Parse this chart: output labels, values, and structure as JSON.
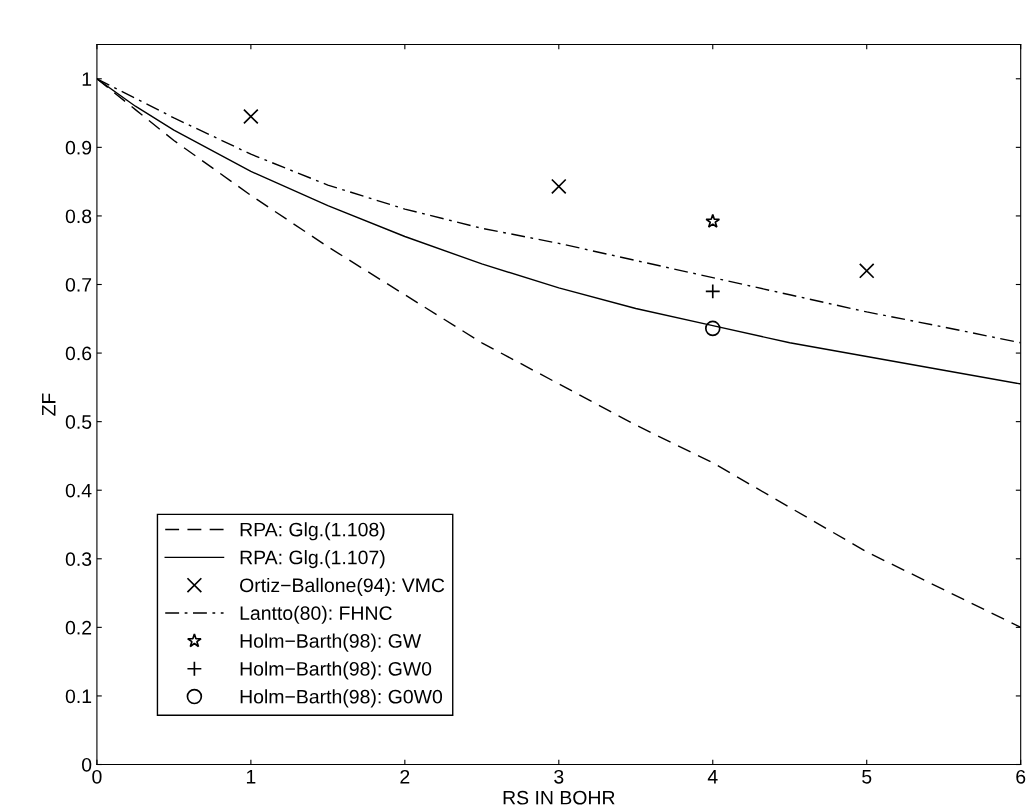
{
  "chart_data": {
    "type": "line",
    "xlabel": "RS IN BOHR",
    "ylabel": "ZF",
    "xlim": [
      0,
      6
    ],
    "ylim": [
      0,
      1.05
    ],
    "xticks": [
      0,
      1,
      2,
      3,
      4,
      5,
      6
    ],
    "yticks": [
      0,
      0.1,
      0.2,
      0.3,
      0.4,
      0.5,
      0.6,
      0.7,
      0.8,
      0.9,
      1
    ],
    "grid": false,
    "legend": "bottom left",
    "series": [
      {
        "name": "RPA: Glg.(1.108)",
        "color": "#000000",
        "line_style": "dashed",
        "marker": "none",
        "x": [
          0,
          0.25,
          0.5,
          1,
          1.5,
          2,
          2.5,
          3,
          3.5,
          4,
          4.5,
          5,
          5.5,
          6
        ],
        "values": [
          1,
          0.955,
          0.91,
          0.83,
          0.755,
          0.685,
          0.615,
          0.555,
          0.495,
          0.44,
          0.375,
          0.31,
          0.255,
          0.2
        ]
      },
      {
        "name": "RPA: Glg.(1.107)",
        "color": "#000000",
        "line_style": "solid",
        "marker": "none",
        "x": [
          0,
          0.25,
          0.5,
          1,
          1.5,
          2,
          2.5,
          3,
          3.5,
          4,
          4.5,
          5,
          5.5,
          6
        ],
        "values": [
          1,
          0.96,
          0.925,
          0.865,
          0.815,
          0.77,
          0.73,
          0.695,
          0.665,
          0.64,
          0.615,
          0.595,
          0.575,
          0.555
        ]
      },
      {
        "name": "Ortiz−Ballone(94): VMC",
        "type": "scatter",
        "color": "#000000",
        "marker": "cross",
        "x": [
          1,
          3,
          5
        ],
        "values": [
          0.945,
          0.843,
          0.72
        ]
      },
      {
        "name": "Lantto(80): FHNC",
        "color": "#000000",
        "line_style": "dashdot",
        "marker": "none",
        "x": [
          0,
          0.5,
          1,
          1.5,
          2,
          2.5,
          3,
          3.5,
          4,
          4.5,
          5,
          5.5,
          6
        ],
        "values": [
          1,
          0.943,
          0.89,
          0.845,
          0.81,
          0.782,
          0.76,
          0.735,
          0.71,
          0.685,
          0.66,
          0.638,
          0.615
        ]
      },
      {
        "name": "Holm−Barth(98): GW",
        "type": "scatter",
        "color": "#000000",
        "marker": "star",
        "x": [
          4
        ],
        "values": [
          0.792
        ]
      },
      {
        "name": "Holm−Barth(98): GW0",
        "type": "scatter",
        "color": "#000000",
        "marker": "plus",
        "x": [
          4
        ],
        "values": [
          0.69
        ]
      },
      {
        "name": "Holm−Barth(98): G0W0",
        "type": "scatter",
        "color": "#000000",
        "marker": "circle",
        "x": [
          4
        ],
        "values": [
          0.636
        ]
      }
    ]
  }
}
